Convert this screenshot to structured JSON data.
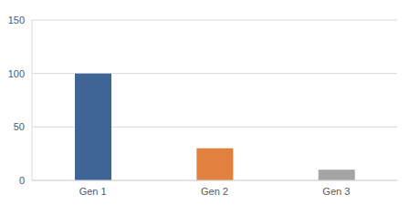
{
  "chart_data": {
    "type": "bar",
    "categories": [
      "Gen 1",
      "Gen 2",
      "Gen 3"
    ],
    "values": [
      100,
      30,
      10
    ],
    "colors": [
      "#3f6496",
      "#e0813f",
      "#a5a5a5"
    ],
    "ylim": [
      0,
      150
    ],
    "yticks": [
      0,
      50,
      100,
      150
    ],
    "grid": true
  }
}
